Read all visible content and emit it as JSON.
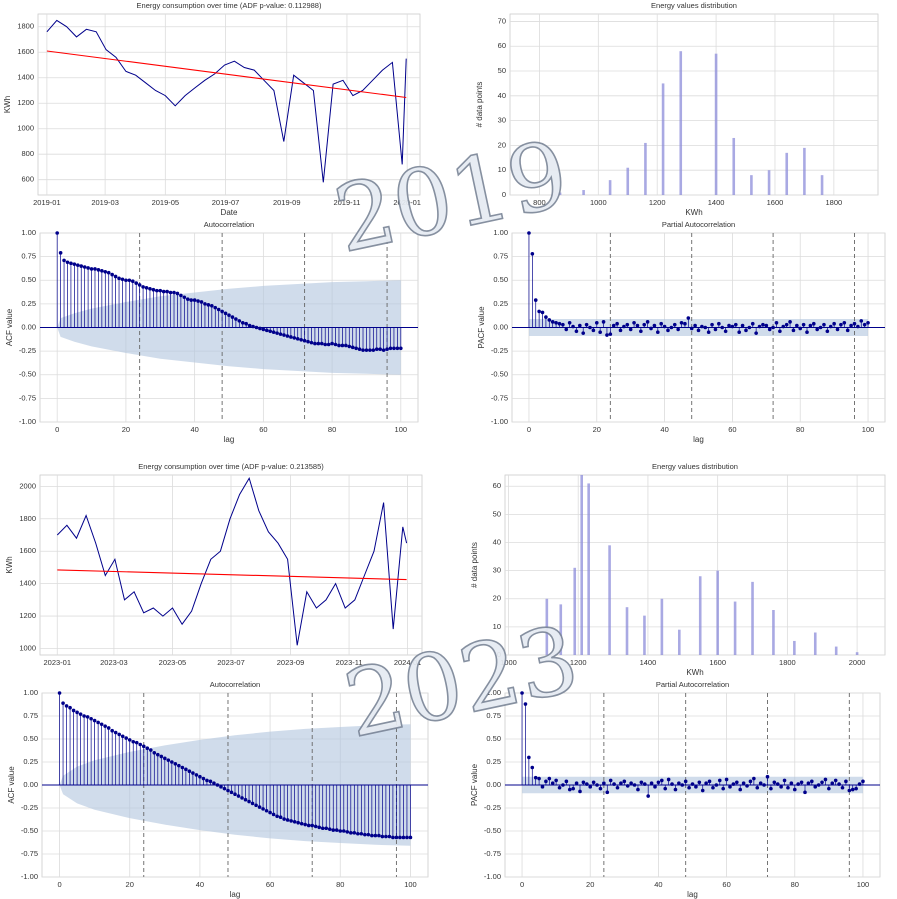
{
  "watermarks": [
    "2019",
    "2023"
  ],
  "chart_data": [
    {
      "type": "line",
      "title": "Energy consumption over time (ADF p-value: 0.112988)",
      "xlabel": "Date",
      "ylabel": "KWh",
      "series": [
        {
          "color": "#00008b",
          "x": [
            0,
            10,
            20,
            30,
            40,
            50,
            60,
            70,
            80,
            90,
            100,
            110,
            120,
            130,
            140,
            150,
            160,
            170,
            180,
            190,
            200,
            210,
            220,
            230,
            240,
            250,
            260,
            270,
            280,
            290,
            300,
            310,
            320,
            330,
            340,
            350,
            360,
            364
          ],
          "values": [
            1760,
            1850,
            1800,
            1720,
            1780,
            1760,
            1620,
            1560,
            1450,
            1420,
            1360,
            1300,
            1260,
            1180,
            1260,
            1320,
            1380,
            1430,
            1500,
            1530,
            1480,
            1460,
            1380,
            1300,
            900,
            1420,
            1360,
            1300,
            580,
            1350,
            1380,
            1260,
            1300,
            1380,
            1460,
            1520,
            720,
            1550
          ]
        },
        {
          "color": "#ff0000",
          "x": [
            0,
            364
          ],
          "values": [
            1610,
            1245
          ]
        }
      ],
      "xlim": [
        -9,
        378
      ],
      "ylim": [
        480,
        1900
      ],
      "xticks": [
        {
          "value": 0,
          "label": "2019-01"
        },
        {
          "value": 59,
          "label": "2019-03"
        },
        {
          "value": 120,
          "label": "2019-05"
        },
        {
          "value": 181,
          "label": "2019-07"
        },
        {
          "value": 243,
          "label": "2019-09"
        },
        {
          "value": 304,
          "label": "2019-11"
        },
        {
          "value": 365,
          "label": "2020-01"
        }
      ],
      "yticks": [
        600,
        800,
        1000,
        1200,
        1400,
        1600,
        1800
      ],
      "grid": true
    },
    {
      "type": "bar",
      "title": "Energy values distribution",
      "xlabel": "KWh",
      "ylabel": "# data points",
      "color": "#8c8cd9",
      "x": [
        870,
        950,
        1040,
        1100,
        1160,
        1220,
        1280,
        1400,
        1460,
        1520,
        1580,
        1640,
        1700,
        1760
      ],
      "values": [
        1,
        2,
        6,
        11,
        21,
        45,
        58,
        57,
        23,
        8,
        10,
        17,
        19,
        8
      ],
      "xlim": [
        700,
        1950
      ],
      "ylim": [
        0,
        73
      ],
      "xticks": [
        800,
        1000,
        1200,
        1400,
        1600,
        1800
      ],
      "yticks": [
        0,
        10,
        20,
        30,
        40,
        50,
        60,
        70
      ],
      "grid": true
    },
    {
      "type": "stem",
      "title": "Autocorrelation",
      "xlabel": "lag",
      "ylabel": "ACF value",
      "color": "#00008b",
      "values": [
        1.0,
        0.79,
        0.71,
        0.69,
        0.68,
        0.67,
        0.66,
        0.65,
        0.64,
        0.63,
        0.62,
        0.62,
        0.61,
        0.6,
        0.59,
        0.58,
        0.56,
        0.54,
        0.52,
        0.51,
        0.5,
        0.5,
        0.49,
        0.47,
        0.45,
        0.43,
        0.42,
        0.41,
        0.4,
        0.39,
        0.39,
        0.38,
        0.38,
        0.37,
        0.37,
        0.36,
        0.34,
        0.32,
        0.3,
        0.29,
        0.29,
        0.28,
        0.27,
        0.25,
        0.24,
        0.23,
        0.21,
        0.19,
        0.17,
        0.15,
        0.13,
        0.11,
        0.09,
        0.07,
        0.05,
        0.04,
        0.02,
        0.01,
        0.0,
        -0.01,
        -0.02,
        -0.03,
        -0.04,
        -0.05,
        -0.06,
        -0.07,
        -0.08,
        -0.09,
        -0.1,
        -0.11,
        -0.12,
        -0.13,
        -0.14,
        -0.15,
        -0.16,
        -0.17,
        -0.17,
        -0.17,
        -0.18,
        -0.18,
        -0.17,
        -0.18,
        -0.19,
        -0.19,
        -0.19,
        -0.2,
        -0.21,
        -0.22,
        -0.23,
        -0.24,
        -0.24,
        -0.24,
        -0.24,
        -0.23,
        -0.23,
        -0.24,
        -0.23,
        -0.22,
        -0.22,
        -0.22,
        -0.22
      ],
      "conf_x": [
        0,
        1,
        5,
        10,
        20,
        30,
        40,
        50,
        60,
        70,
        80,
        90,
        100
      ],
      "conf": [
        0,
        0.1,
        0.15,
        0.2,
        0.27,
        0.33,
        0.37,
        0.41,
        0.44,
        0.46,
        0.48,
        0.49,
        0.5
      ],
      "vlines": [
        24,
        48,
        72,
        96
      ],
      "xlim": [
        -5,
        105
      ],
      "ylim": [
        -1,
        1
      ],
      "xticks": [
        0,
        20,
        40,
        60,
        80,
        100
      ],
      "yticks": [
        {
          "value": -1,
          "label": "-1.00"
        },
        {
          "value": -0.75,
          "label": "-0.75"
        },
        {
          "value": -0.5,
          "label": "-0.50"
        },
        {
          "value": -0.25,
          "label": "-0.25"
        },
        {
          "value": 0,
          "label": "0.00"
        },
        {
          "value": 0.25,
          "label": "0.25"
        },
        {
          "value": 0.5,
          "label": "0.50"
        },
        {
          "value": 0.75,
          "label": "0.75"
        },
        {
          "value": 1,
          "label": "1.00"
        }
      ],
      "grid": true
    },
    {
      "type": "stem",
      "title": "Partial Autocorrelation",
      "xlabel": "lag",
      "ylabel": "PACF value",
      "color": "#00008b",
      "values": [
        1.0,
        0.78,
        0.29,
        0.17,
        0.16,
        0.11,
        0.08,
        0.06,
        0.05,
        0.04,
        0.03,
        -0.02,
        0.05,
        0.01,
        -0.04,
        0.02,
        -0.06,
        0.03,
        0.0,
        -0.03,
        0.05,
        -0.05,
        0.06,
        -0.08,
        -0.07,
        0.02,
        0.04,
        -0.03,
        0.01,
        0.03,
        -0.02,
        0.05,
        0.02,
        -0.04,
        0.03,
        0.06,
        -0.01,
        0.02,
        -0.05,
        0.04,
        0.01,
        -0.03,
        0.0,
        0.03,
        -0.02,
        0.05,
        0.04,
        0.1,
        -0.01,
        0.02,
        -0.03,
        0.01,
        0.0,
        -0.05,
        0.03,
        -0.02,
        0.04,
        0.0,
        -0.04,
        0.02,
        0.01,
        0.03,
        -0.05,
        0.02,
        -0.03,
        0.0,
        0.04,
        -0.06,
        0.01,
        0.03,
        0.02,
        -0.02,
        0.0,
        0.05,
        -0.04,
        0.01,
        0.03,
        0.06,
        -0.03,
        0.02,
        -0.01,
        0.03,
        -0.05,
        0.02,
        0.04,
        -0.02,
        0.0,
        0.03,
        -0.04,
        0.01,
        0.04,
        -0.02,
        0.03,
        0.05,
        -0.03,
        0.02,
        0.04,
        0.01,
        0.07,
        0.03,
        0.05
      ],
      "conf_x": [
        0,
        100
      ],
      "conf": [
        0.09,
        0.09
      ],
      "vlines": [
        24,
        48,
        72,
        96
      ],
      "xlim": [
        -5,
        105
      ],
      "ylim": [
        -1,
        1
      ],
      "xticks": [
        0,
        20,
        40,
        60,
        80,
        100
      ],
      "yticks": [
        {
          "value": -1,
          "label": "-1.00"
        },
        {
          "value": -0.75,
          "label": "-0.75"
        },
        {
          "value": -0.5,
          "label": "-0.50"
        },
        {
          "value": -0.25,
          "label": "-0.25"
        },
        {
          "value": 0,
          "label": "0.00"
        },
        {
          "value": 0.25,
          "label": "0.25"
        },
        {
          "value": 0.5,
          "label": "0.50"
        },
        {
          "value": 0.75,
          "label": "0.75"
        },
        {
          "value": 1,
          "label": "1.00"
        }
      ],
      "grid": true
    },
    {
      "type": "line",
      "title": "Energy consumption over time (ADF p-value: 0.213585)",
      "ylabel": "KWh",
      "series": [
        {
          "color": "#00008b",
          "x": [
            0,
            10,
            20,
            30,
            40,
            50,
            60,
            70,
            80,
            90,
            100,
            110,
            120,
            130,
            140,
            150,
            160,
            170,
            180,
            190,
            200,
            210,
            220,
            230,
            240,
            250,
            260,
            270,
            280,
            290,
            300,
            310,
            320,
            330,
            340,
            350,
            360,
            364
          ],
          "values": [
            1700,
            1760,
            1680,
            1820,
            1650,
            1450,
            1550,
            1300,
            1350,
            1220,
            1250,
            1200,
            1250,
            1150,
            1230,
            1400,
            1550,
            1600,
            1800,
            1950,
            2050,
            1850,
            1720,
            1650,
            1550,
            1020,
            1350,
            1250,
            1300,
            1400,
            1250,
            1300,
            1450,
            1600,
            1900,
            1120,
            1750,
            1650
          ]
        },
        {
          "color": "#ff0000",
          "x": [
            0,
            364
          ],
          "values": [
            1485,
            1425
          ]
        }
      ],
      "xlim": [
        -18,
        380
      ],
      "ylim": [
        960,
        2070
      ],
      "xticks": [
        {
          "value": 0,
          "label": "2023-01"
        },
        {
          "value": 59,
          "label": "2023-03"
        },
        {
          "value": 120,
          "label": "2023-05"
        },
        {
          "value": 181,
          "label": "2023-07"
        },
        {
          "value": 243,
          "label": "2023-09"
        },
        {
          "value": 304,
          "label": "2023-11"
        },
        {
          "value": 365,
          "label": "2024-01"
        }
      ],
      "yticks": [
        1000,
        1200,
        1400,
        1600,
        1800,
        2000
      ],
      "grid": true
    },
    {
      "type": "bar",
      "title": "Energy values distribution",
      "xlabel": "KWh",
      "ylabel": "# data points",
      "color": "#8c8cd9",
      "x": [
        1110,
        1150,
        1190,
        1210,
        1230,
        1290,
        1340,
        1390,
        1440,
        1490,
        1550,
        1600,
        1650,
        1700,
        1760,
        1820,
        1880,
        1940,
        2000
      ],
      "values": [
        20,
        18,
        31,
        64,
        61,
        39,
        17,
        14,
        20,
        9,
        28,
        30,
        19,
        26,
        16,
        5,
        8,
        3,
        1
      ],
      "xlim": [
        990,
        2080
      ],
      "ylim": [
        0,
        64
      ],
      "xticks": [
        1000,
        1200,
        1400,
        1600,
        1800,
        2000
      ],
      "yticks": [
        0,
        10,
        20,
        30,
        40,
        50,
        60
      ],
      "grid": true
    },
    {
      "type": "stem",
      "title": "Autocorrelation",
      "xlabel": "lag",
      "ylabel": "ACF value",
      "color": "#00008b",
      "values": [
        1.0,
        0.89,
        0.86,
        0.84,
        0.81,
        0.79,
        0.77,
        0.75,
        0.74,
        0.72,
        0.7,
        0.68,
        0.66,
        0.64,
        0.62,
        0.59,
        0.57,
        0.55,
        0.53,
        0.51,
        0.49,
        0.47,
        0.46,
        0.44,
        0.42,
        0.4,
        0.38,
        0.35,
        0.33,
        0.31,
        0.29,
        0.27,
        0.25,
        0.23,
        0.21,
        0.19,
        0.17,
        0.15,
        0.13,
        0.11,
        0.09,
        0.07,
        0.05,
        0.04,
        0.02,
        0.0,
        -0.02,
        -0.04,
        -0.06,
        -0.08,
        -0.1,
        -0.12,
        -0.14,
        -0.16,
        -0.18,
        -0.2,
        -0.22,
        -0.24,
        -0.26,
        -0.28,
        -0.3,
        -0.32,
        -0.34,
        -0.35,
        -0.37,
        -0.38,
        -0.39,
        -0.4,
        -0.41,
        -0.42,
        -0.43,
        -0.44,
        -0.44,
        -0.45,
        -0.46,
        -0.47,
        -0.47,
        -0.48,
        -0.49,
        -0.49,
        -0.5,
        -0.5,
        -0.51,
        -0.52,
        -0.52,
        -0.53,
        -0.53,
        -0.54,
        -0.54,
        -0.55,
        -0.55,
        -0.55,
        -0.56,
        -0.56,
        -0.56,
        -0.57,
        -0.57,
        -0.57,
        -0.57,
        -0.57,
        -0.57
      ],
      "conf_x": [
        0,
        1,
        5,
        10,
        20,
        30,
        40,
        50,
        60,
        70,
        80,
        90,
        100
      ],
      "conf": [
        0,
        0.1,
        0.2,
        0.27,
        0.36,
        0.43,
        0.49,
        0.54,
        0.58,
        0.61,
        0.63,
        0.65,
        0.66
      ],
      "vlines": [
        24,
        48,
        72,
        96
      ],
      "xlim": [
        -5,
        105
      ],
      "ylim": [
        -1,
        1
      ],
      "xticks": [
        0,
        20,
        40,
        60,
        80,
        100
      ],
      "yticks": [
        {
          "value": -1,
          "label": "-1.00"
        },
        {
          "value": -0.75,
          "label": "-0.75"
        },
        {
          "value": -0.5,
          "label": "-0.50"
        },
        {
          "value": -0.25,
          "label": "-0.25"
        },
        {
          "value": 0,
          "label": "0.00"
        },
        {
          "value": 0.25,
          "label": "0.25"
        },
        {
          "value": 0.5,
          "label": "0.50"
        },
        {
          "value": 0.75,
          "label": "0.75"
        },
        {
          "value": 1,
          "label": "1.00"
        }
      ],
      "grid": true
    },
    {
      "type": "stem",
      "title": "Partial Autocorrelation",
      "xlabel": "lag",
      "ylabel": "PACF value",
      "color": "#00008b",
      "values": [
        1.0,
        0.88,
        0.3,
        0.19,
        0.08,
        0.07,
        -0.02,
        0.04,
        0.07,
        0.02,
        0.05,
        -0.03,
        0.0,
        0.04,
        -0.05,
        -0.04,
        0.02,
        -0.07,
        0.03,
        0.01,
        -0.02,
        0.03,
        0.0,
        -0.04,
        0.02,
        -0.08,
        0.05,
        0.01,
        -0.03,
        0.02,
        0.04,
        -0.01,
        0.02,
        0.0,
        -0.05,
        0.03,
        0.01,
        -0.12,
        0.02,
        -0.02,
        0.03,
        0.05,
        -0.04,
        0.06,
        0.01,
        -0.05,
        0.02,
        0.0,
        0.04,
        -0.03,
        0.01,
        -0.02,
        0.03,
        -0.06,
        0.02,
        0.04,
        -0.03,
        0.0,
        0.05,
        -0.04,
        0.06,
        -0.02,
        0.01,
        0.03,
        -0.05,
        0.02,
        -0.01,
        0.04,
        0.07,
        -0.03,
        0.02,
        0.0,
        0.09,
        -0.04,
        0.03,
        0.01,
        -0.02,
        0.05,
        -0.03,
        0.02,
        -0.05,
        0.01,
        0.03,
        -0.08,
        0.02,
        0.04,
        -0.02,
        0.0,
        0.03,
        0.06,
        -0.04,
        0.02,
        0.05,
        0.01,
        -0.03,
        0.04,
        -0.06,
        -0.05,
        -0.04,
        0.01,
        0.04
      ],
      "conf_x": [
        0,
        100
      ],
      "conf": [
        0.09,
        0.09
      ],
      "vlines": [
        24,
        48,
        72,
        96
      ],
      "xlim": [
        -5,
        105
      ],
      "ylim": [
        -1,
        1
      ],
      "xticks": [
        0,
        20,
        40,
        60,
        80,
        100
      ],
      "yticks": [
        {
          "value": -1,
          "label": "-1.00"
        },
        {
          "value": -0.75,
          "label": "-0.75"
        },
        {
          "value": -0.5,
          "label": "-0.50"
        },
        {
          "value": -0.25,
          "label": "-0.25"
        },
        {
          "value": 0,
          "label": "0.00"
        },
        {
          "value": 0.25,
          "label": "0.25"
        },
        {
          "value": 0.5,
          "label": "0.50"
        },
        {
          "value": 0.75,
          "label": "0.75"
        },
        {
          "value": 1,
          "label": "1.00"
        }
      ],
      "grid": true
    }
  ]
}
